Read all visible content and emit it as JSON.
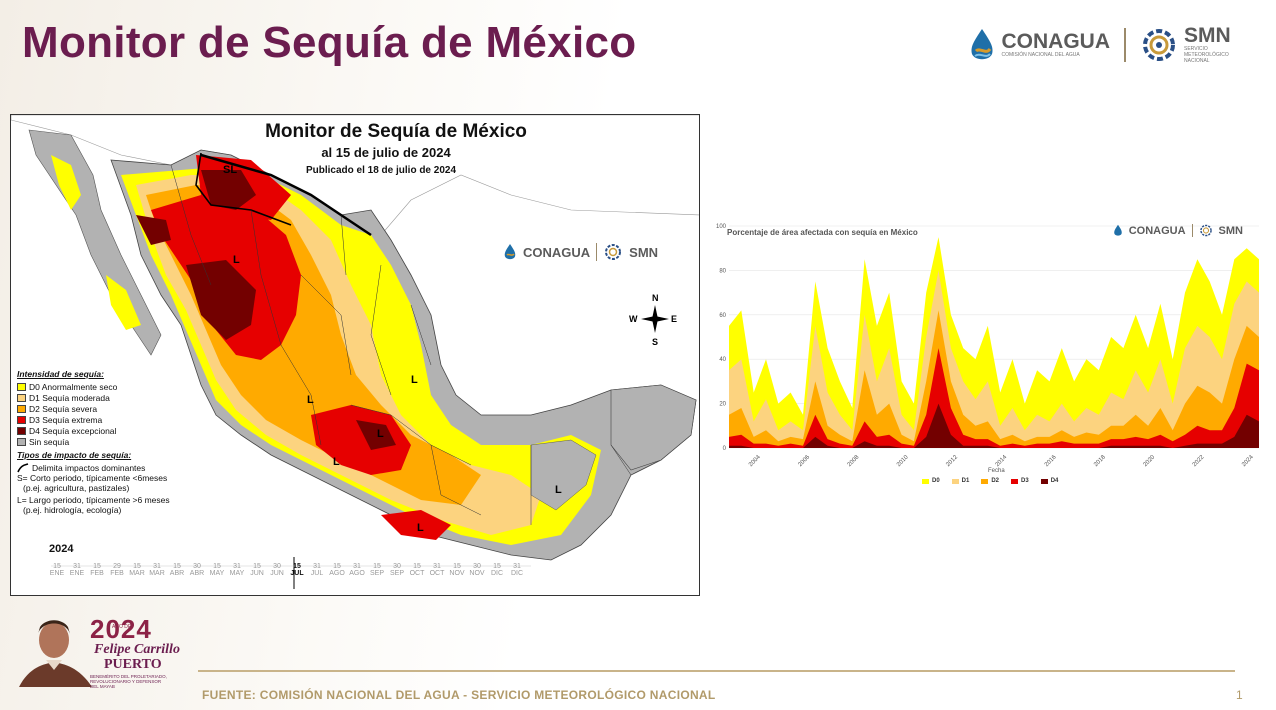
{
  "slide": {
    "title": "Monitor de Sequía de México",
    "page_number": "1",
    "source": "FUENTE: COMISIÓN NACIONAL DEL AGUA - SERVICIO METEOROLÓGICO NACIONAL"
  },
  "header_logos": {
    "conagua": "CONAGUA",
    "conagua_sub": "COMISIÓN NACIONAL DEL AGUA",
    "smn": "SMN",
    "smn_sub": "SERVICIO METEOROLÓGICO NACIONAL"
  },
  "map": {
    "title": "Monitor de Sequía de México",
    "subtitle": "al 15 de julio de 2024",
    "published": "Publicado el 18 de julio de 2024",
    "compass": {
      "n": "N",
      "s": "S",
      "e": "E",
      "w": "W"
    },
    "legend": {
      "intensity_heading": "Intensidad de sequía:",
      "items": [
        {
          "code": "D0",
          "label": "D0 Anormalmente seco",
          "color": "#ffff00"
        },
        {
          "code": "D1",
          "label": "D1 Sequía moderada",
          "color": "#fcd37f"
        },
        {
          "code": "D2",
          "label": "D2 Sequía severa",
          "color": "#ffaa00"
        },
        {
          "code": "D3",
          "label": "D3 Sequía extrema",
          "color": "#e60000"
        },
        {
          "code": "D4",
          "label": "D4 Sequía excepcional",
          "color": "#730000"
        },
        {
          "code": "none",
          "label": "Sin sequía",
          "color": "#b2b2b2"
        }
      ],
      "impact_heading": "Tipos de impacto de sequía:",
      "impact_line": "Delimita impactos dominantes",
      "short_term": "S= Corto periodo, típicamente <6meses",
      "short_term_example": "(p.ej. agricultura, pastizales)",
      "long_term": "L= Largo periodo, típicamente >6 meses",
      "long_term_example": "(p.ej. hidrología, ecología)"
    },
    "region_labels": [
      "SL",
      "L",
      "L",
      "L",
      "L",
      "L",
      "L",
      "L"
    ],
    "timeline": {
      "year": "2024",
      "days": [
        "15",
        "31",
        "15",
        "29",
        "15",
        "31",
        "15",
        "30",
        "15",
        "31",
        "15",
        "30",
        "15",
        "31",
        "15",
        "31",
        "15",
        "30",
        "15",
        "31",
        "15",
        "30",
        "15",
        "31"
      ],
      "months": [
        "ENE",
        "ENE",
        "FEB",
        "FEB",
        "MAR",
        "MAR",
        "ABR",
        "ABR",
        "MAY",
        "MAY",
        "JUN",
        "JUN",
        "JUL",
        "JUL",
        "AGO",
        "AGO",
        "SEP",
        "SEP",
        "OCT",
        "OCT",
        "NOV",
        "NOV",
        "DIC",
        "DIC"
      ],
      "current_day": "15",
      "current_month": "JUL"
    }
  },
  "timeseries": {
    "title": "Porcentaje de área afectada con sequía en México",
    "conagua": "CONAGUA",
    "smn": "SMN"
  },
  "footer_logo": {
    "year": "2024",
    "ano": "AÑO DE",
    "name": "Felipe Carrillo",
    "puerto": "PUERTO",
    "tagline": "BENEMÉRITO DEL PROLETARIADO, REVOLUCIONARIO Y DEFENSOR DEL MAYAB"
  },
  "chart_data": {
    "type": "area",
    "title": "Porcentaje de área afectada con sequía en México",
    "xlabel": "Fecha",
    "ylabel": "",
    "ylim": [
      0,
      100
    ],
    "yticks": [
      0,
      20,
      40,
      60,
      80,
      100
    ],
    "xticks": [
      "2004",
      "2006",
      "2008",
      "2010",
      "2012",
      "2014",
      "2016",
      "2018",
      "2020",
      "2022",
      "2024"
    ],
    "x": [
      2003.0,
      2003.5,
      2004.0,
      2004.5,
      2005.0,
      2005.5,
      2006.0,
      2006.5,
      2007.0,
      2007.5,
      2008.0,
      2008.5,
      2009.0,
      2009.5,
      2010.0,
      2010.5,
      2011.0,
      2011.5,
      2012.0,
      2012.5,
      2013.0,
      2013.5,
      2014.0,
      2014.5,
      2015.0,
      2015.5,
      2016.0,
      2016.5,
      2017.0,
      2017.5,
      2018.0,
      2018.5,
      2019.0,
      2019.5,
      2020.0,
      2020.5,
      2021.0,
      2021.5,
      2022.0,
      2022.5,
      2023.0,
      2023.5,
      2024.0,
      2024.5
    ],
    "series": [
      {
        "name": "D0",
        "color": "#ffff00",
        "values": [
          55,
          62,
          25,
          40,
          20,
          25,
          15,
          75,
          45,
          30,
          18,
          85,
          55,
          70,
          30,
          20,
          70,
          95,
          60,
          45,
          40,
          55,
          25,
          40,
          20,
          35,
          30,
          45,
          30,
          40,
          35,
          50,
          45,
          60,
          45,
          65,
          40,
          70,
          85,
          75,
          60,
          85,
          90,
          85
        ]
      },
      {
        "name": "D1",
        "color": "#fcd37f",
        "values": [
          35,
          40,
          12,
          22,
          8,
          12,
          8,
          55,
          25,
          15,
          8,
          60,
          30,
          45,
          15,
          8,
          50,
          80,
          45,
          30,
          22,
          30,
          10,
          18,
          8,
          15,
          12,
          20,
          12,
          18,
          15,
          25,
          22,
          35,
          25,
          40,
          20,
          45,
          55,
          50,
          40,
          65,
          75,
          70
        ]
      },
      {
        "name": "D2",
        "color": "#ffaa00",
        "values": [
          15,
          18,
          5,
          8,
          3,
          5,
          4,
          30,
          10,
          6,
          3,
          35,
          15,
          20,
          6,
          3,
          30,
          62,
          30,
          15,
          10,
          12,
          4,
          6,
          3,
          5,
          5,
          8,
          5,
          7,
          6,
          10,
          10,
          15,
          10,
          18,
          8,
          20,
          28,
          25,
          20,
          40,
          55,
          50
        ]
      },
      {
        "name": "D3",
        "color": "#e60000",
        "values": [
          5,
          6,
          2,
          2,
          1,
          2,
          1,
          15,
          4,
          2,
          1,
          12,
          5,
          6,
          2,
          1,
          15,
          45,
          18,
          6,
          4,
          4,
          1,
          2,
          1,
          2,
          2,
          3,
          2,
          2,
          2,
          4,
          4,
          5,
          4,
          6,
          3,
          6,
          10,
          8,
          8,
          18,
          38,
          35
        ]
      },
      {
        "name": "D4",
        "color": "#730000",
        "values": [
          1,
          1,
          0,
          0,
          0,
          0,
          0,
          5,
          1,
          0,
          0,
          3,
          1,
          1,
          0,
          0,
          5,
          20,
          6,
          1,
          1,
          1,
          0,
          0,
          0,
          0,
          0,
          0,
          0,
          0,
          0,
          1,
          1,
          1,
          1,
          1,
          0,
          1,
          2,
          2,
          2,
          5,
          15,
          12
        ]
      }
    ]
  }
}
